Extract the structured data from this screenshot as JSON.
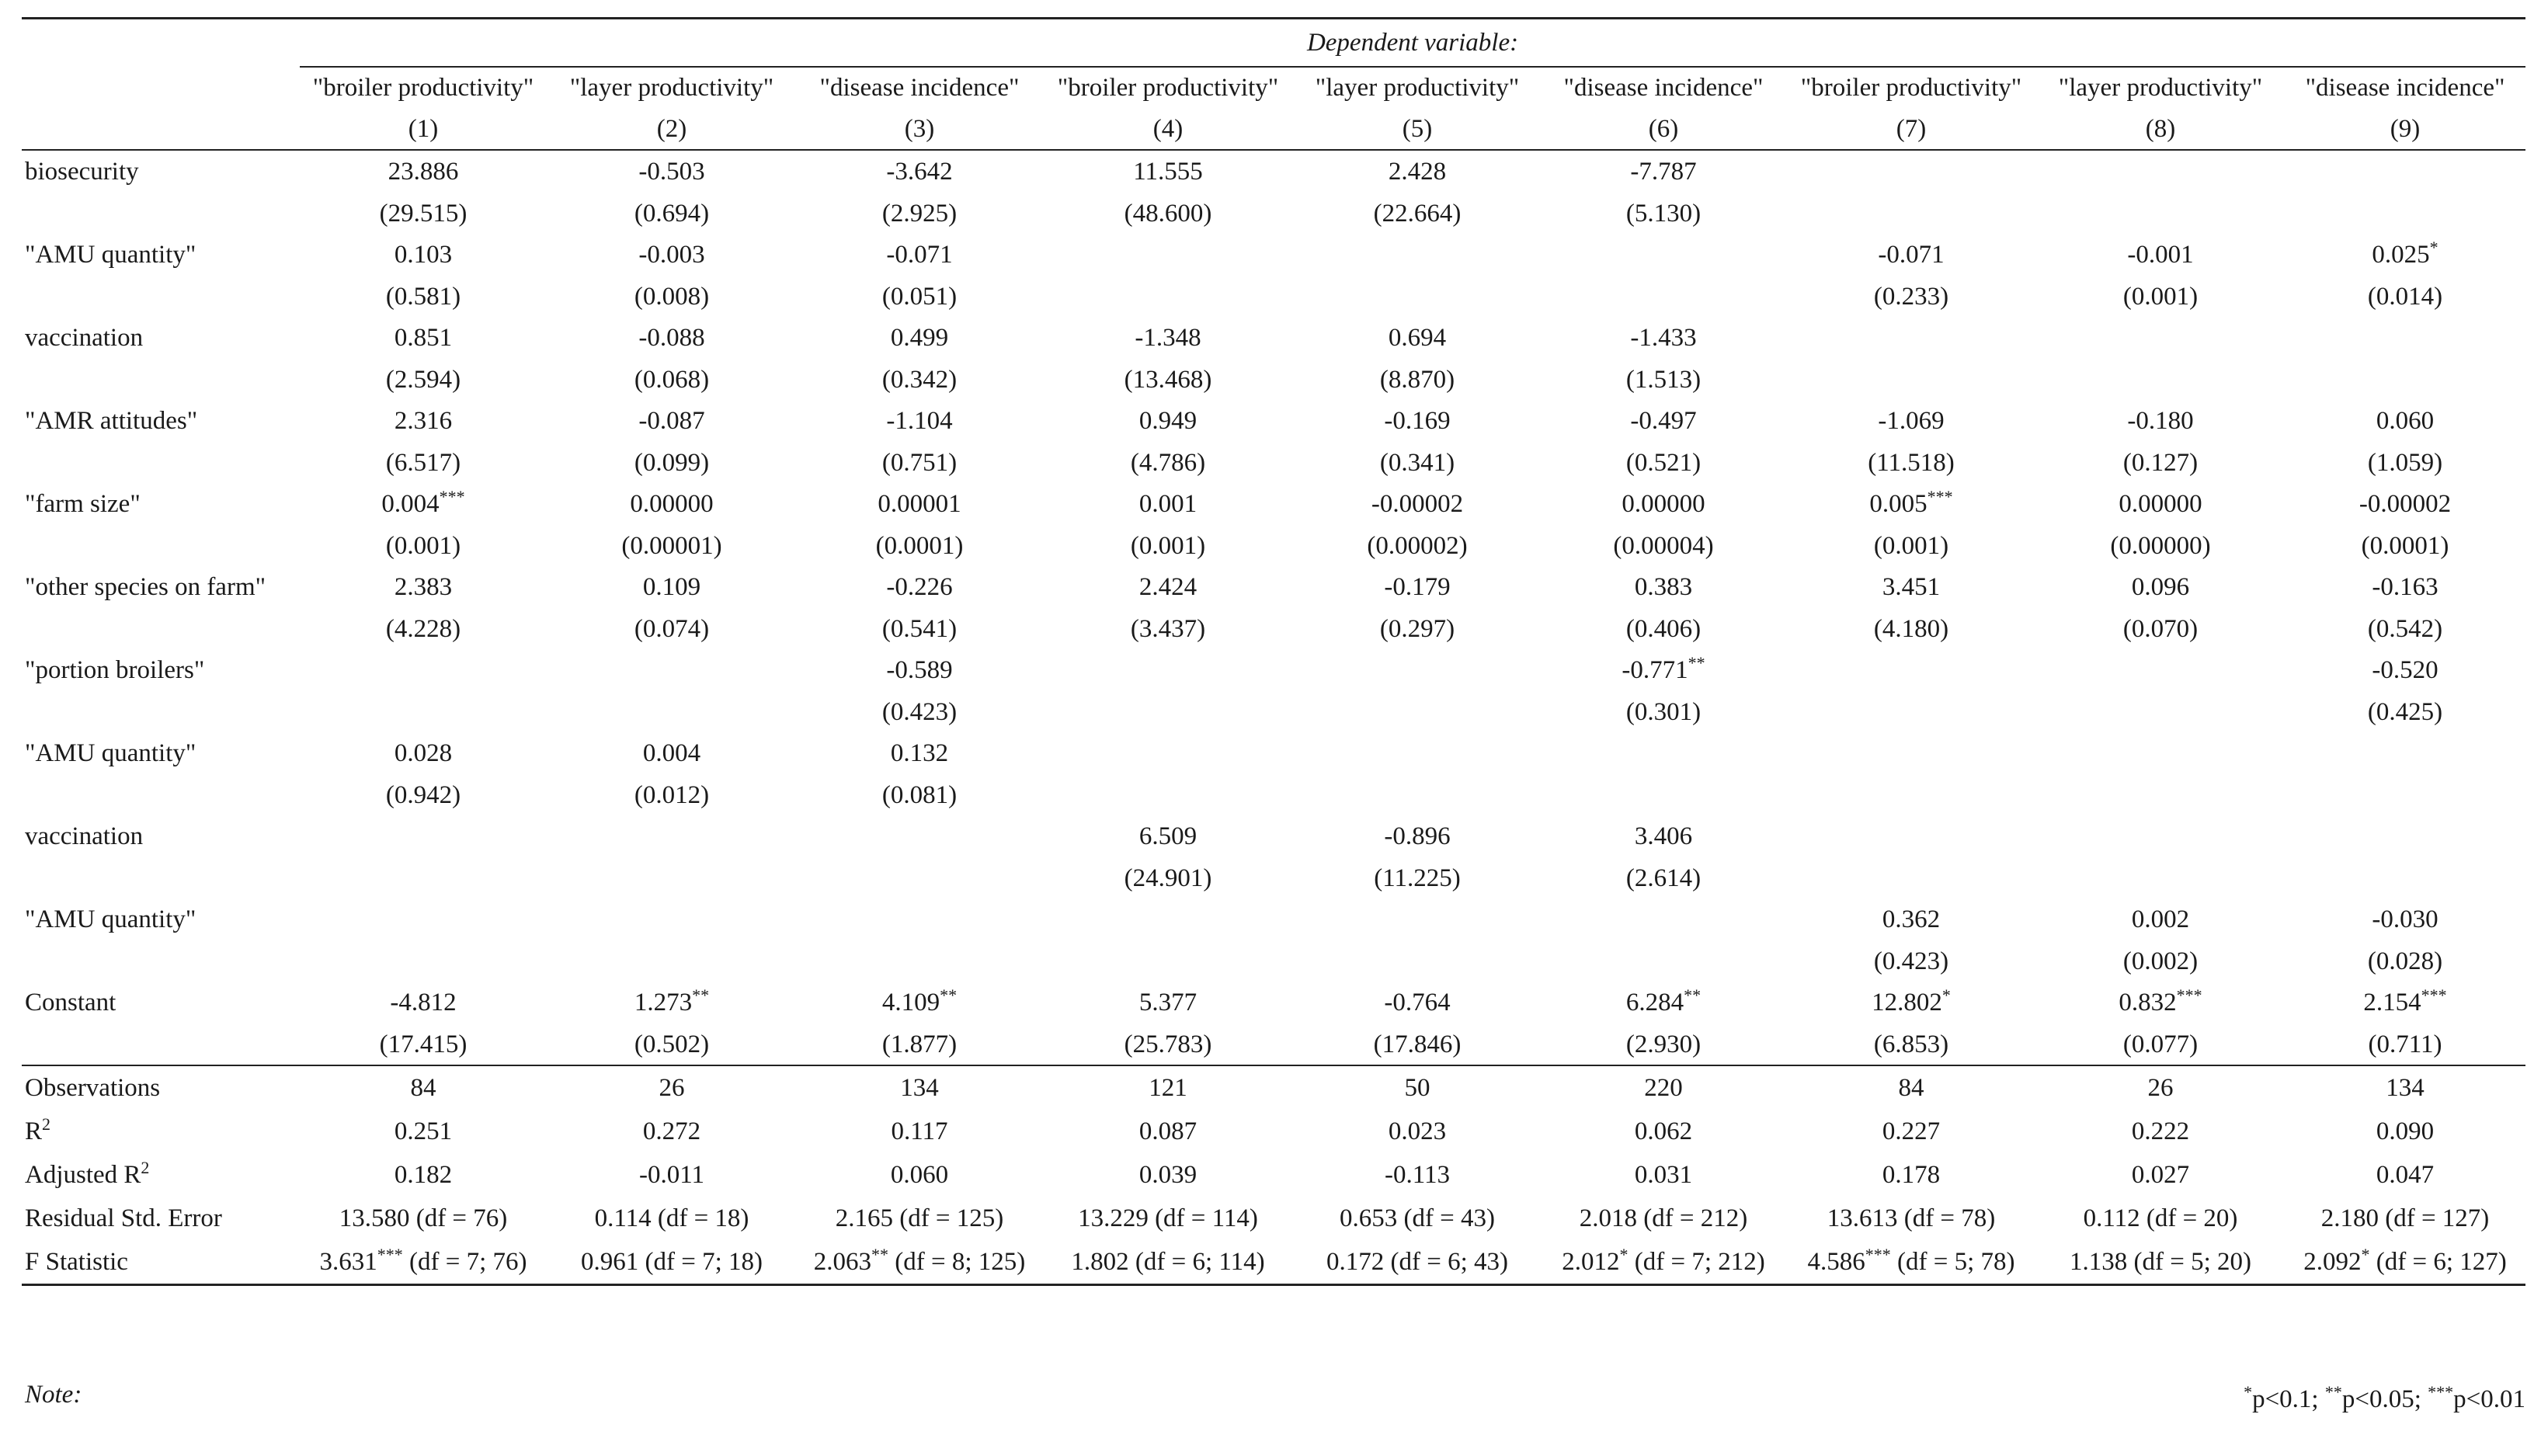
{
  "table": {
    "dep_label": "Dependent variable:",
    "columns": [
      {
        "name": "\"broiler productivity\"",
        "num": "(1)"
      },
      {
        "name": "\"layer productivity\"",
        "num": "(2)"
      },
      {
        "name": "\"disease incidence\"",
        "num": "(3)"
      },
      {
        "name": "\"broiler productivity\"",
        "num": "(4)"
      },
      {
        "name": "\"layer productivity\"",
        "num": "(5)"
      },
      {
        "name": "\"disease incidence\"",
        "num": "(6)"
      },
      {
        "name": "\"broiler productivity\"",
        "num": "(7)"
      },
      {
        "name": "\"layer productivity\"",
        "num": "(8)"
      },
      {
        "name": "\"disease incidence\"",
        "num": "(9)"
      }
    ],
    "rows": [
      {
        "label": "biosecurity",
        "coef": [
          [
            "23.886",
            ""
          ],
          [
            "-0.503",
            ""
          ],
          [
            "-3.642",
            ""
          ],
          [
            "11.555",
            ""
          ],
          [
            "2.428",
            ""
          ],
          [
            "-7.787",
            ""
          ],
          [
            "",
            ""
          ],
          [
            "",
            ""
          ],
          [
            "",
            ""
          ]
        ],
        "se": [
          "(29.515)",
          "(0.694)",
          "(2.925)",
          "(48.600)",
          "(22.664)",
          "(5.130)",
          "",
          "",
          ""
        ]
      },
      {
        "label": "\"AMU quantity\"",
        "coef": [
          [
            "0.103",
            ""
          ],
          [
            "-0.003",
            ""
          ],
          [
            "-0.071",
            ""
          ],
          [
            "",
            ""
          ],
          [
            "",
            ""
          ],
          [
            "",
            ""
          ],
          [
            "-0.071",
            ""
          ],
          [
            "-0.001",
            ""
          ],
          [
            "0.025",
            "*"
          ]
        ],
        "se": [
          "(0.581)",
          "(0.008)",
          "(0.051)",
          "",
          "",
          "",
          "(0.233)",
          "(0.001)",
          "(0.014)"
        ]
      },
      {
        "label": "vaccination",
        "coef": [
          [
            "0.851",
            ""
          ],
          [
            "-0.088",
            ""
          ],
          [
            "0.499",
            ""
          ],
          [
            "-1.348",
            ""
          ],
          [
            "0.694",
            ""
          ],
          [
            "-1.433",
            ""
          ],
          [
            "",
            ""
          ],
          [
            "",
            ""
          ],
          [
            "",
            ""
          ]
        ],
        "se": [
          "(2.594)",
          "(0.068)",
          "(0.342)",
          "(13.468)",
          "(8.870)",
          "(1.513)",
          "",
          "",
          ""
        ]
      },
      {
        "label": "\"AMR attitudes\"",
        "coef": [
          [
            "2.316",
            ""
          ],
          [
            "-0.087",
            ""
          ],
          [
            "-1.104",
            ""
          ],
          [
            "0.949",
            ""
          ],
          [
            "-0.169",
            ""
          ],
          [
            "-0.497",
            ""
          ],
          [
            "-1.069",
            ""
          ],
          [
            "-0.180",
            ""
          ],
          [
            "0.060",
            ""
          ]
        ],
        "se": [
          "(6.517)",
          "(0.099)",
          "(0.751)",
          "(4.786)",
          "(0.341)",
          "(0.521)",
          "(11.518)",
          "(0.127)",
          "(1.059)"
        ]
      },
      {
        "label": "\"farm size\"",
        "coef": [
          [
            "0.004",
            "***"
          ],
          [
            "0.00000",
            ""
          ],
          [
            "0.00001",
            ""
          ],
          [
            "0.001",
            ""
          ],
          [
            "-0.00002",
            ""
          ],
          [
            "0.00000",
            ""
          ],
          [
            "0.005",
            "***"
          ],
          [
            "0.00000",
            ""
          ],
          [
            "-0.00002",
            ""
          ]
        ],
        "se": [
          "(0.001)",
          "(0.00001)",
          "(0.0001)",
          "(0.001)",
          "(0.00002)",
          "(0.00004)",
          "(0.001)",
          "(0.00000)",
          "(0.0001)"
        ]
      },
      {
        "label": "\"other species on farm\"",
        "coef": [
          [
            "2.383",
            ""
          ],
          [
            "0.109",
            ""
          ],
          [
            "-0.226",
            ""
          ],
          [
            "2.424",
            ""
          ],
          [
            "-0.179",
            ""
          ],
          [
            "0.383",
            ""
          ],
          [
            "3.451",
            ""
          ],
          [
            "0.096",
            ""
          ],
          [
            "-0.163",
            ""
          ]
        ],
        "se": [
          "(4.228)",
          "(0.074)",
          "(0.541)",
          "(3.437)",
          "(0.297)",
          "(0.406)",
          "(4.180)",
          "(0.070)",
          "(0.542)"
        ]
      },
      {
        "label": "\"portion broilers\"",
        "coef": [
          [
            "",
            ""
          ],
          [
            "",
            ""
          ],
          [
            "-0.589",
            ""
          ],
          [
            "",
            ""
          ],
          [
            "",
            ""
          ],
          [
            "-0.771",
            "**"
          ],
          [
            "",
            ""
          ],
          [
            "",
            ""
          ],
          [
            "-0.520",
            ""
          ]
        ],
        "se": [
          "",
          "",
          "(0.423)",
          "",
          "",
          "(0.301)",
          "",
          "",
          "(0.425)"
        ]
      },
      {
        "label": "\"AMU quantity\"",
        "coef": [
          [
            "0.028",
            ""
          ],
          [
            "0.004",
            ""
          ],
          [
            "0.132",
            ""
          ],
          [
            "",
            ""
          ],
          [
            "",
            ""
          ],
          [
            "",
            ""
          ],
          [
            "",
            ""
          ],
          [
            "",
            ""
          ],
          [
            "",
            ""
          ]
        ],
        "se": [
          "(0.942)",
          "(0.012)",
          "(0.081)",
          "",
          "",
          "",
          "",
          "",
          ""
        ]
      },
      {
        "label": "vaccination",
        "coef": [
          [
            "",
            ""
          ],
          [
            "",
            ""
          ],
          [
            "",
            ""
          ],
          [
            "6.509",
            ""
          ],
          [
            "-0.896",
            ""
          ],
          [
            "3.406",
            ""
          ],
          [
            "",
            ""
          ],
          [
            "",
            ""
          ],
          [
            "",
            ""
          ]
        ],
        "se": [
          "",
          "",
          "",
          "(24.901)",
          "(11.225)",
          "(2.614)",
          "",
          "",
          ""
        ]
      },
      {
        "label": "\"AMU quantity\"",
        "coef": [
          [
            "",
            ""
          ],
          [
            "",
            ""
          ],
          [
            "",
            ""
          ],
          [
            "",
            ""
          ],
          [
            "",
            ""
          ],
          [
            "",
            ""
          ],
          [
            "0.362",
            ""
          ],
          [
            "0.002",
            ""
          ],
          [
            "-0.030",
            ""
          ]
        ],
        "se": [
          "",
          "",
          "",
          "",
          "",
          "",
          "(0.423)",
          "(0.002)",
          "(0.028)"
        ]
      },
      {
        "label": "Constant",
        "coef": [
          [
            "-4.812",
            ""
          ],
          [
            "1.273",
            "**"
          ],
          [
            "4.109",
            "**"
          ],
          [
            "5.377",
            ""
          ],
          [
            "-0.764",
            ""
          ],
          [
            "6.284",
            "**"
          ],
          [
            "12.802",
            "*"
          ],
          [
            "0.832",
            "***"
          ],
          [
            "2.154",
            "***"
          ]
        ],
        "se": [
          "(17.415)",
          "(0.502)",
          "(1.877)",
          "(25.783)",
          "(17.846)",
          "(2.930)",
          "(6.853)",
          "(0.077)",
          "(0.711)"
        ]
      }
    ],
    "stats": [
      {
        "label": "Observations",
        "label_sup": "",
        "values": [
          [
            "84",
            ""
          ],
          [
            "26",
            ""
          ],
          [
            "134",
            ""
          ],
          [
            "121",
            ""
          ],
          [
            "50",
            ""
          ],
          [
            "220",
            ""
          ],
          [
            "84",
            ""
          ],
          [
            "26",
            ""
          ],
          [
            "134",
            ""
          ]
        ]
      },
      {
        "label": "R",
        "label_sup": "2",
        "values": [
          [
            "0.251",
            ""
          ],
          [
            "0.272",
            ""
          ],
          [
            "0.117",
            ""
          ],
          [
            "0.087",
            ""
          ],
          [
            "0.023",
            ""
          ],
          [
            "0.062",
            ""
          ],
          [
            "0.227",
            ""
          ],
          [
            "0.222",
            ""
          ],
          [
            "0.090",
            ""
          ]
        ]
      },
      {
        "label": "Adjusted R",
        "label_sup": "2",
        "values": [
          [
            "0.182",
            ""
          ],
          [
            "-0.011",
            ""
          ],
          [
            "0.060",
            ""
          ],
          [
            "0.039",
            ""
          ],
          [
            "-0.113",
            ""
          ],
          [
            "0.031",
            ""
          ],
          [
            "0.178",
            ""
          ],
          [
            "0.027",
            ""
          ],
          [
            "0.047",
            ""
          ]
        ]
      },
      {
        "label": "Residual Std. Error",
        "label_sup": "",
        "values": [
          [
            "13.580 (df = 76)",
            ""
          ],
          [
            "0.114 (df = 18)",
            ""
          ],
          [
            "2.165 (df = 125)",
            ""
          ],
          [
            "13.229 (df = 114)",
            ""
          ],
          [
            "0.653 (df = 43)",
            ""
          ],
          [
            "2.018 (df = 212)",
            ""
          ],
          [
            "13.613 (df = 78)",
            ""
          ],
          [
            "0.112 (df = 20)",
            ""
          ],
          [
            "2.180 (df = 127)",
            ""
          ]
        ]
      },
      {
        "label": "F Statistic",
        "label_sup": "",
        "values": [
          [
            "3.631",
            "***",
            " (df = 7; 76)"
          ],
          [
            "0.961",
            "",
            " (df = 7; 18)"
          ],
          [
            "2.063",
            "**",
            " (df = 8; 125)"
          ],
          [
            "1.802",
            "",
            " (df = 6; 114)"
          ],
          [
            "0.172",
            "",
            " (df = 6; 43)"
          ],
          [
            "2.012",
            "*",
            " (df = 7; 212)"
          ],
          [
            "4.586",
            "***",
            " (df = 5; 78)"
          ],
          [
            "1.138",
            "",
            " (df = 5; 20)"
          ],
          [
            "2.092",
            "*",
            " (df = 6; 127)"
          ]
        ]
      }
    ],
    "note_label": "Note:",
    "significance": [
      {
        "stars": "*",
        "text": "p<0.1; "
      },
      {
        "stars": "**",
        "text": "p<0.05; "
      },
      {
        "stars": "***",
        "text": "p<0.01"
      }
    ]
  }
}
